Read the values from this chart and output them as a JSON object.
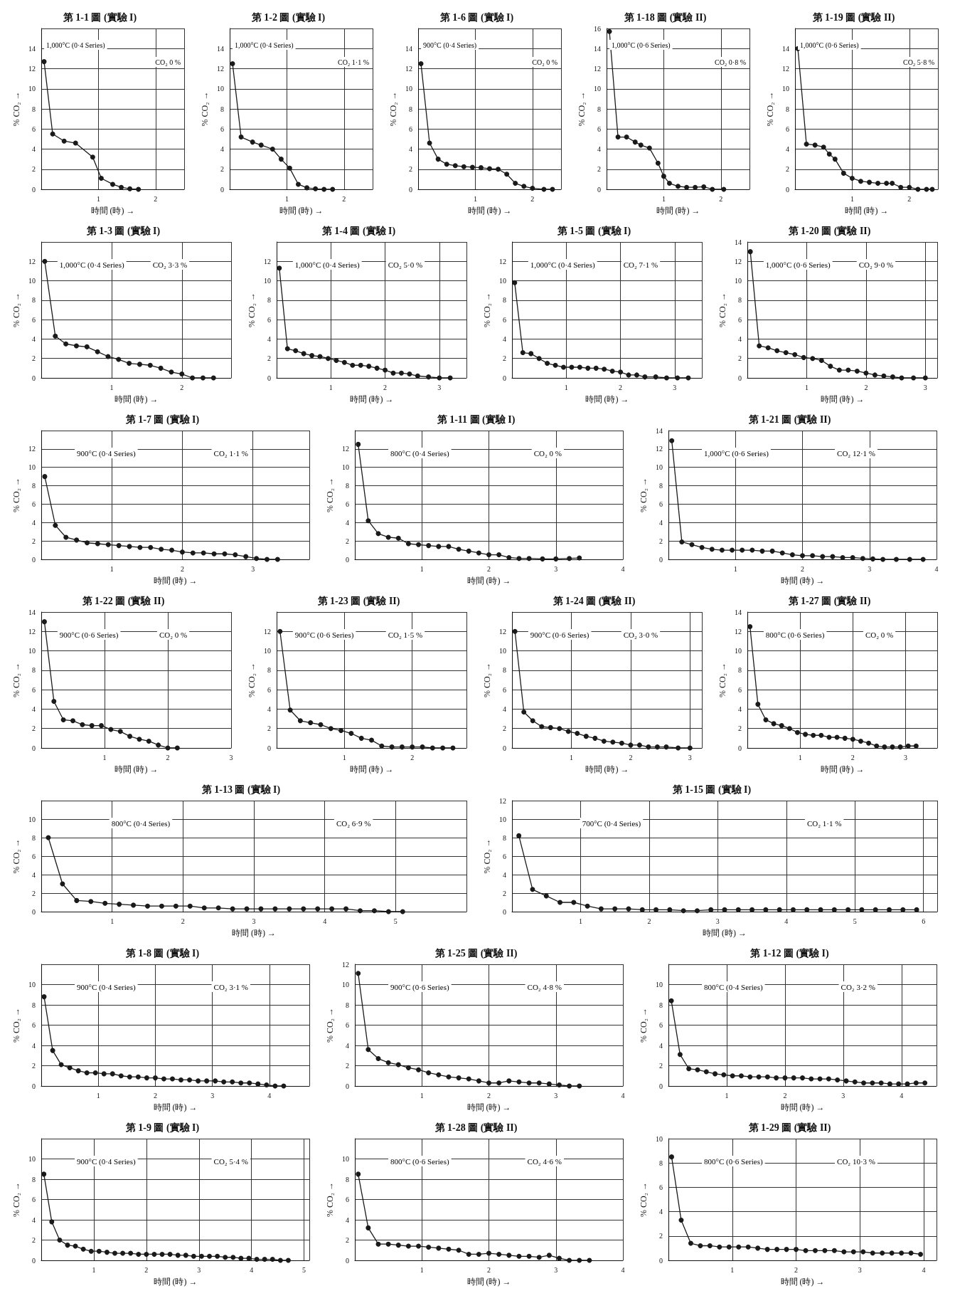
{
  "chart_data": [
    {
      "type": "line",
      "title": "第 1-1 圖 (實驗 I)",
      "xlabel": "時間 (時) →",
      "ylabel": "% CO₂ →",
      "annotations": [
        "1,000°C (0·4 Series)",
        "CO₂ 0 %"
      ],
      "color": "#1a1a1a",
      "marker": "circle",
      "grid": true,
      "xlim": [
        0,
        2.5
      ],
      "ylim": [
        0,
        16
      ],
      "xticks": [
        1,
        2
      ],
      "yticks": [
        0,
        2,
        4,
        6,
        8,
        10,
        12,
        14
      ],
      "x": [
        0.05,
        0.2,
        0.4,
        0.6,
        0.9,
        1.05,
        1.25,
        1.4,
        1.55,
        1.7
      ],
      "values": [
        12.7,
        5.5,
        4.8,
        4.6,
        3.2,
        1.1,
        0.5,
        0.2,
        0.05,
        0
      ]
    },
    {
      "type": "line",
      "title": "第 1-2 圖 (實驗 I)",
      "xlabel": "時間 (時) →",
      "ylabel": "% CO₂ →",
      "annotations": [
        "1,000°C (0·4 Series)",
        "CO₂ 1·1 %"
      ],
      "color": "#1a1a1a",
      "marker": "circle",
      "grid": true,
      "xlim": [
        0,
        2.5
      ],
      "ylim": [
        0,
        16
      ],
      "xticks": [
        1,
        2
      ],
      "yticks": [
        0,
        2,
        4,
        6,
        8,
        10,
        12,
        14
      ],
      "x": [
        0.05,
        0.2,
        0.4,
        0.55,
        0.75,
        0.9,
        1.05,
        1.2,
        1.35,
        1.5,
        1.65,
        1.8
      ],
      "values": [
        12.5,
        5.2,
        4.7,
        4.4,
        4.0,
        3.0,
        2.1,
        0.5,
        0.15,
        0.05,
        0,
        0
      ]
    },
    {
      "type": "line",
      "title": "第 1-6 圖 (實驗 I)",
      "xlabel": "時間 (時) →",
      "ylabel": "% CO₂ →",
      "annotations": [
        "900°C (0·4 Series)",
        "CO₂ 0 %"
      ],
      "color": "#1a1a1a",
      "marker": "circle",
      "grid": true,
      "xlim": [
        0,
        2.5
      ],
      "ylim": [
        0,
        16
      ],
      "xticks": [
        1,
        2
      ],
      "yticks": [
        0,
        2,
        4,
        6,
        8,
        10,
        12,
        14
      ],
      "x": [
        0.05,
        0.2,
        0.35,
        0.5,
        0.65,
        0.8,
        0.95,
        1.1,
        1.25,
        1.4,
        1.55,
        1.7,
        1.85,
        2.0,
        2.2,
        2.35
      ],
      "values": [
        12.5,
        4.6,
        3.0,
        2.5,
        2.35,
        2.25,
        2.2,
        2.15,
        2.05,
        2.0,
        1.5,
        0.6,
        0.3,
        0.1,
        0,
        0
      ]
    },
    {
      "type": "line",
      "title": "第 1-18 圖 (實驗 II)",
      "xlabel": "時間 (時) →",
      "ylabel": "% CO₂ →",
      "annotations": [
        "1,000°C (0·6 Series)",
        "CO₂ 0·8 %"
      ],
      "color": "#1a1a1a",
      "marker": "circle",
      "grid": true,
      "xlim": [
        0,
        2.5
      ],
      "ylim": [
        0,
        16
      ],
      "xticks": [
        1,
        2
      ],
      "yticks": [
        0,
        2,
        4,
        6,
        8,
        10,
        12,
        14,
        16
      ],
      "x": [
        0.05,
        0.2,
        0.35,
        0.5,
        0.6,
        0.75,
        0.9,
        1.0,
        1.1,
        1.25,
        1.4,
        1.55,
        1.7,
        1.85,
        2.05
      ],
      "values": [
        15.7,
        5.2,
        5.2,
        4.7,
        4.4,
        4.1,
        2.6,
        1.3,
        0.6,
        0.3,
        0.2,
        0.2,
        0.25,
        0,
        0
      ]
    },
    {
      "type": "line",
      "title": "第 1-19 圖 (實驗 II)",
      "xlabel": "時間 (時) →",
      "ylabel": "% CO₂ →",
      "annotations": [
        "1,000°C (0·6 Series)",
        "CO₂ 5·8 %"
      ],
      "color": "#1a1a1a",
      "marker": "circle",
      "grid": true,
      "xlim": [
        0,
        2.5
      ],
      "ylim": [
        0,
        16
      ],
      "xticks": [
        1,
        2
      ],
      "yticks": [
        0,
        2,
        4,
        6,
        8,
        10,
        12,
        14
      ],
      "x": [
        0.05,
        0.2,
        0.35,
        0.5,
        0.6,
        0.7,
        0.85,
        1.0,
        1.15,
        1.3,
        1.45,
        1.6,
        1.7,
        1.85,
        2.0,
        2.15,
        2.3,
        2.4
      ],
      "values": [
        14,
        4.5,
        4.4,
        4.2,
        3.5,
        3.0,
        1.6,
        1.1,
        0.8,
        0.7,
        0.6,
        0.6,
        0.6,
        0.2,
        0.2,
        0,
        0,
        0
      ]
    },
    {
      "type": "line",
      "title": "第 1-3 圖 (實驗 I)",
      "xlabel": "時間 (時) →",
      "ylabel": "% CO₂ →",
      "annotations": [
        "1,000°C (0·4 Series)",
        "CO₂ 3·3 %"
      ],
      "color": "#1a1a1a",
      "marker": "circle",
      "grid": true,
      "xlim": [
        0,
        2.7
      ],
      "ylim": [
        0,
        14
      ],
      "xticks": [
        1,
        2
      ],
      "yticks": [
        0,
        2,
        4,
        6,
        8,
        10,
        12
      ],
      "x": [
        0.05,
        0.2,
        0.35,
        0.5,
        0.65,
        0.8,
        0.95,
        1.1,
        1.25,
        1.4,
        1.55,
        1.7,
        1.85,
        2.0,
        2.15,
        2.3,
        2.45
      ],
      "values": [
        12,
        4.3,
        3.5,
        3.3,
        3.2,
        2.7,
        2.2,
        1.9,
        1.5,
        1.4,
        1.3,
        1.0,
        0.6,
        0.4,
        0,
        0,
        0
      ]
    },
    {
      "type": "line",
      "title": "第 1-4 圖 (實驗 I)",
      "xlabel": "時間 (時) →",
      "ylabel": "% CO₂ →",
      "annotations": [
        "1,000°C (0·4 Series)",
        "CO₂ 5·0 %"
      ],
      "color": "#1a1a1a",
      "marker": "circle",
      "grid": true,
      "xlim": [
        0,
        3.5
      ],
      "ylim": [
        0,
        14
      ],
      "xticks": [
        1,
        2,
        3
      ],
      "yticks": [
        0,
        2,
        4,
        6,
        8,
        10,
        12
      ],
      "x": [
        0.05,
        0.2,
        0.35,
        0.5,
        0.65,
        0.8,
        0.95,
        1.1,
        1.25,
        1.4,
        1.55,
        1.7,
        1.85,
        2.0,
        2.15,
        2.3,
        2.45,
        2.6,
        2.8,
        3.0,
        3.2
      ],
      "values": [
        11.3,
        3.0,
        2.8,
        2.5,
        2.3,
        2.2,
        2.0,
        1.8,
        1.6,
        1.3,
        1.3,
        1.2,
        1.0,
        0.8,
        0.5,
        0.5,
        0.4,
        0.2,
        0.1,
        0,
        0
      ]
    },
    {
      "type": "line",
      "title": "第 1-5 圖 (實驗 I)",
      "xlabel": "時間 (時) →",
      "ylabel": "% CO₂ →",
      "annotations": [
        "1,000°C (0·4 Series)",
        "CO₂ 7·1 %"
      ],
      "color": "#1a1a1a",
      "marker": "circle",
      "grid": true,
      "xlim": [
        0,
        3.5
      ],
      "ylim": [
        0,
        14
      ],
      "xticks": [
        1,
        2,
        3
      ],
      "yticks": [
        0,
        2,
        4,
        6,
        8,
        10,
        12
      ],
      "x": [
        0.05,
        0.2,
        0.35,
        0.5,
        0.65,
        0.8,
        0.95,
        1.1,
        1.25,
        1.4,
        1.55,
        1.7,
        1.85,
        2.0,
        2.15,
        2.3,
        2.45,
        2.65,
        2.85,
        3.05,
        3.25
      ],
      "values": [
        9.8,
        2.6,
        2.5,
        2.0,
        1.5,
        1.3,
        1.1,
        1.1,
        1.1,
        1.0,
        1.0,
        0.9,
        0.7,
        0.6,
        0.3,
        0.3,
        0.1,
        0.1,
        0,
        0,
        0
      ]
    },
    {
      "type": "line",
      "title": "第 1-20 圖 (實驗 II)",
      "xlabel": "時間 (時) →",
      "ylabel": "% CO₂ →",
      "annotations": [
        "1,000°C (0·6 Series)",
        "CO₂ 9·0 %"
      ],
      "color": "#1a1a1a",
      "marker": "circle",
      "grid": true,
      "xlim": [
        0,
        3.2
      ],
      "ylim": [
        0,
        14
      ],
      "xticks": [
        1,
        2,
        3
      ],
      "yticks": [
        0,
        2,
        4,
        6,
        8,
        10,
        12,
        14
      ],
      "x": [
        0.05,
        0.2,
        0.35,
        0.5,
        0.65,
        0.8,
        0.95,
        1.1,
        1.25,
        1.4,
        1.55,
        1.7,
        1.85,
        2.0,
        2.15,
        2.3,
        2.45,
        2.6,
        2.8,
        3.0
      ],
      "values": [
        13,
        3.3,
        3.1,
        2.8,
        2.6,
        2.4,
        2.1,
        2.0,
        1.8,
        1.2,
        0.8,
        0.8,
        0.7,
        0.5,
        0.3,
        0.2,
        0.1,
        0,
        0,
        0
      ]
    },
    {
      "type": "line",
      "title": "第 1-7 圖 (實驗 I)",
      "xlabel": "時間 (時) →",
      "ylabel": "% CO₂ →",
      "annotations": [
        "900°C (0·4 Series)",
        "CO₂ 1·1 %"
      ],
      "color": "#1a1a1a",
      "marker": "circle",
      "grid": true,
      "xlim": [
        0,
        3.8
      ],
      "ylim": [
        0,
        14
      ],
      "xticks": [
        1,
        2,
        3
      ],
      "yticks": [
        0,
        2,
        4,
        6,
        8,
        10,
        12
      ],
      "x": [
        0.05,
        0.2,
        0.35,
        0.5,
        0.65,
        0.8,
        0.95,
        1.1,
        1.25,
        1.4,
        1.55,
        1.7,
        1.85,
        2.0,
        2.15,
        2.3,
        2.45,
        2.6,
        2.75,
        2.9,
        3.05,
        3.2,
        3.35
      ],
      "values": [
        9,
        3.7,
        2.4,
        2.1,
        1.8,
        1.7,
        1.6,
        1.5,
        1.4,
        1.3,
        1.3,
        1.1,
        1.0,
        0.8,
        0.7,
        0.7,
        0.6,
        0.6,
        0.5,
        0.3,
        0.1,
        0,
        0
      ]
    },
    {
      "type": "line",
      "title": "第 1-11 圖 (實驗 I)",
      "xlabel": "時間 (時) →",
      "ylabel": "% CO₂ →",
      "annotations": [
        "800°C (0·4 Series)",
        "CO₂ 0 %"
      ],
      "color": "#1a1a1a",
      "marker": "circle",
      "grid": true,
      "xlim": [
        0,
        4
      ],
      "ylim": [
        0,
        14
      ],
      "xticks": [
        1,
        2,
        3,
        4
      ],
      "yticks": [
        0,
        2,
        4,
        6,
        8,
        10,
        12
      ],
      "x": [
        0.05,
        0.2,
        0.35,
        0.5,
        0.65,
        0.8,
        0.95,
        1.1,
        1.25,
        1.4,
        1.55,
        1.7,
        1.85,
        2.0,
        2.15,
        2.3,
        2.45,
        2.6,
        2.8,
        3.0,
        3.2,
        3.35
      ],
      "values": [
        12.5,
        4.2,
        2.8,
        2.4,
        2.3,
        1.7,
        1.6,
        1.5,
        1.4,
        1.4,
        1.1,
        0.9,
        0.7,
        0.5,
        0.5,
        0.2,
        0.1,
        0.1,
        0.05,
        0.05,
        0.1,
        0.15
      ]
    },
    {
      "type": "line",
      "title": "第 1-21 圖 (實驗 II)",
      "xlabel": "時間 (時) →",
      "ylabel": "% CO₂ →",
      "annotations": [
        "1,000°C (0·6 Series)",
        "CO₂ 12·1 %"
      ],
      "color": "#1a1a1a",
      "marker": "circle",
      "grid": true,
      "xlim": [
        0,
        4
      ],
      "ylim": [
        0,
        14
      ],
      "xticks": [
        1,
        2,
        3,
        4
      ],
      "yticks": [
        0,
        2,
        4,
        6,
        8,
        10,
        12,
        14
      ],
      "x": [
        0.05,
        0.2,
        0.35,
        0.5,
        0.65,
        0.8,
        0.95,
        1.1,
        1.25,
        1.4,
        1.55,
        1.7,
        1.85,
        2.0,
        2.15,
        2.3,
        2.45,
        2.6,
        2.75,
        2.9,
        3.05,
        3.2,
        3.4,
        3.6,
        3.8
      ],
      "values": [
        12.9,
        1.9,
        1.6,
        1.3,
        1.1,
        1.0,
        1.0,
        1.0,
        1.0,
        0.9,
        0.9,
        0.7,
        0.5,
        0.4,
        0.4,
        0.3,
        0.3,
        0.2,
        0.2,
        0.1,
        0.05,
        0,
        0,
        0,
        0
      ]
    },
    {
      "type": "line",
      "title": "第 1-22 圖 (實驗 II)",
      "xlabel": "時間 (時) →",
      "ylabel": "% CO₂ →",
      "annotations": [
        "900°C (0·6 Series)",
        "CO₂ 0 %"
      ],
      "color": "#1a1a1a",
      "marker": "circle",
      "grid": true,
      "xlim": [
        0,
        3
      ],
      "ylim": [
        0,
        14
      ],
      "xticks": [
        1,
        2,
        3
      ],
      "yticks": [
        0,
        2,
        4,
        6,
        8,
        10,
        12,
        14
      ],
      "x": [
        0.05,
        0.2,
        0.35,
        0.5,
        0.65,
        0.8,
        0.95,
        1.1,
        1.25,
        1.4,
        1.55,
        1.7,
        1.85,
        2.0,
        2.15
      ],
      "values": [
        13,
        4.8,
        2.9,
        2.8,
        2.4,
        2.3,
        2.3,
        1.9,
        1.7,
        1.2,
        0.9,
        0.7,
        0.3,
        0,
        0
      ]
    },
    {
      "type": "line",
      "title": "第 1-23 圖 (實驗 II)",
      "xlabel": "時間 (時) →",
      "ylabel": "% CO₂ →",
      "annotations": [
        "900°C (0·6 Series)",
        "CO₂ 1·5 %"
      ],
      "color": "#1a1a1a",
      "marker": "circle",
      "grid": true,
      "xlim": [
        0,
        2.8
      ],
      "ylim": [
        0,
        14
      ],
      "xticks": [
        1,
        2
      ],
      "yticks": [
        0,
        2,
        4,
        6,
        8,
        10,
        12
      ],
      "x": [
        0.05,
        0.2,
        0.35,
        0.5,
        0.65,
        0.8,
        0.95,
        1.1,
        1.25,
        1.4,
        1.55,
        1.7,
        1.85,
        2.0,
        2.15,
        2.3,
        2.45,
        2.6
      ],
      "values": [
        12,
        3.9,
        2.8,
        2.6,
        2.4,
        2.0,
        1.8,
        1.5,
        1.0,
        0.8,
        0.2,
        0.1,
        0.1,
        0.1,
        0.1,
        0,
        0,
        0
      ]
    },
    {
      "type": "line",
      "title": "第 1-24 圖 (實驗 II)",
      "xlabel": "時間 (時) →",
      "ylabel": "% CO₂ →",
      "annotations": [
        "900°C (0·6 Series)",
        "CO₂ 3·0 %"
      ],
      "color": "#1a1a1a",
      "marker": "circle",
      "grid": true,
      "xlim": [
        0,
        3.2
      ],
      "ylim": [
        0,
        14
      ],
      "xticks": [
        1,
        2,
        3
      ],
      "yticks": [
        0,
        2,
        4,
        6,
        8,
        10,
        12
      ],
      "x": [
        0.05,
        0.2,
        0.35,
        0.5,
        0.65,
        0.8,
        0.95,
        1.1,
        1.25,
        1.4,
        1.55,
        1.7,
        1.85,
        2.0,
        2.15,
        2.3,
        2.45,
        2.6,
        2.8,
        3.0
      ],
      "values": [
        12,
        3.7,
        2.8,
        2.2,
        2.1,
        2.0,
        1.7,
        1.5,
        1.2,
        1.0,
        0.7,
        0.6,
        0.5,
        0.3,
        0.3,
        0.1,
        0.1,
        0.1,
        0,
        0
      ]
    },
    {
      "type": "line",
      "title": "第 1-27 圖 (實驗 II)",
      "xlabel": "時間 (時) →",
      "ylabel": "% CO₂ →",
      "annotations": [
        "800°C (0·6 Series)",
        "CO₂ 0 %"
      ],
      "color": "#1a1a1a",
      "marker": "circle",
      "grid": true,
      "xlim": [
        0,
        3.6
      ],
      "ylim": [
        0,
        14
      ],
      "xticks": [
        1,
        2,
        3
      ],
      "yticks": [
        0,
        2,
        4,
        6,
        8,
        10,
        12,
        14
      ],
      "x": [
        0.05,
        0.2,
        0.35,
        0.5,
        0.65,
        0.8,
        0.95,
        1.1,
        1.25,
        1.4,
        1.55,
        1.7,
        1.85,
        2.0,
        2.15,
        2.3,
        2.45,
        2.6,
        2.75,
        2.9,
        3.05,
        3.2
      ],
      "values": [
        12.5,
        4.5,
        2.9,
        2.5,
        2.3,
        2.0,
        1.6,
        1.4,
        1.3,
        1.3,
        1.1,
        1.1,
        1.0,
        0.9,
        0.7,
        0.5,
        0.2,
        0.1,
        0.1,
        0.1,
        0.2,
        0.2
      ]
    },
    {
      "type": "line",
      "title": "第 1-13 圖 (實驗 I)",
      "xlabel": "時間 (時) →",
      "ylabel": "% CO₂ →",
      "annotations": [
        "800°C (0·4 Series)",
        "CO₂ 6·9 %"
      ],
      "color": "#1a1a1a",
      "marker": "circle",
      "grid": true,
      "xlim": [
        0,
        6
      ],
      "ylim": [
        0,
        12
      ],
      "xticks": [
        1,
        2,
        3,
        4,
        5
      ],
      "yticks": [
        0,
        2,
        4,
        6,
        8,
        10
      ],
      "x": [
        0.1,
        0.3,
        0.5,
        0.7,
        0.9,
        1.1,
        1.3,
        1.5,
        1.7,
        1.9,
        2.1,
        2.3,
        2.5,
        2.7,
        2.9,
        3.1,
        3.3,
        3.5,
        3.7,
        3.9,
        4.1,
        4.3,
        4.5,
        4.7,
        4.9,
        5.1
      ],
      "values": [
        8,
        3,
        1.2,
        1.1,
        0.9,
        0.8,
        0.7,
        0.6,
        0.6,
        0.6,
        0.6,
        0.4,
        0.4,
        0.3,
        0.3,
        0.3,
        0.3,
        0.3,
        0.3,
        0.3,
        0.3,
        0.3,
        0.1,
        0.1,
        0,
        0
      ]
    },
    {
      "type": "line",
      "title": "第 1-15 圖 (實驗 I)",
      "xlabel": "時間 (時) →",
      "ylabel": "% CO₂ →",
      "annotations": [
        "700°C (0·4 Series)",
        "CO₂ 1·1 %"
      ],
      "color": "#1a1a1a",
      "marker": "circle",
      "grid": true,
      "xlim": [
        0,
        6.2
      ],
      "ylim": [
        0,
        12
      ],
      "xticks": [
        1,
        2,
        3,
        4,
        5,
        6
      ],
      "yticks": [
        0,
        2,
        4,
        6,
        8,
        10,
        12
      ],
      "x": [
        0.1,
        0.3,
        0.5,
        0.7,
        0.9,
        1.1,
        1.3,
        1.5,
        1.7,
        1.9,
        2.1,
        2.3,
        2.5,
        2.7,
        2.9,
        3.1,
        3.3,
        3.5,
        3.7,
        3.9,
        4.1,
        4.3,
        4.5,
        4.7,
        4.9,
        5.1,
        5.3,
        5.5,
        5.7,
        5.9
      ],
      "values": [
        8.2,
        2.4,
        1.7,
        1.0,
        1.0,
        0.6,
        0.3,
        0.3,
        0.3,
        0.2,
        0.2,
        0.2,
        0.1,
        0.1,
        0.2,
        0.2,
        0.2,
        0.2,
        0.2,
        0.2,
        0.2,
        0.2,
        0.2,
        0.2,
        0.2,
        0.2,
        0.2,
        0.2,
        0.2,
        0.2
      ]
    },
    {
      "type": "line",
      "title": "第 1-8 圖 (實驗 I)",
      "xlabel": "時間 (時) →",
      "ylabel": "% CO₂ →",
      "annotations": [
        "900°C (0·4 Series)",
        "CO₂ 3·1 %"
      ],
      "color": "#1a1a1a",
      "marker": "circle",
      "grid": true,
      "xlim": [
        0,
        4.7
      ],
      "ylim": [
        0,
        12
      ],
      "xticks": [
        1,
        2,
        3,
        4
      ],
      "yticks": [
        0,
        2,
        4,
        6,
        8,
        10
      ],
      "x": [
        0.05,
        0.2,
        0.35,
        0.5,
        0.65,
        0.8,
        0.95,
        1.1,
        1.25,
        1.4,
        1.55,
        1.7,
        1.85,
        2.0,
        2.15,
        2.3,
        2.45,
        2.6,
        2.75,
        2.9,
        3.05,
        3.2,
        3.35,
        3.5,
        3.65,
        3.8,
        3.95,
        4.1,
        4.25
      ],
      "values": [
        8.8,
        3.5,
        2.1,
        1.8,
        1.5,
        1.3,
        1.3,
        1.2,
        1.2,
        1.0,
        0.9,
        0.9,
        0.8,
        0.8,
        0.7,
        0.7,
        0.6,
        0.6,
        0.5,
        0.5,
        0.5,
        0.4,
        0.4,
        0.3,
        0.3,
        0.2,
        0.1,
        0,
        0
      ]
    },
    {
      "type": "line",
      "title": "第 1-25 圖 (實驗 II)",
      "xlabel": "時間 (時) →",
      "ylabel": "% CO₂ →",
      "annotations": [
        "900°C (0·6 Series)",
        "CO₂ 4·8 %"
      ],
      "color": "#1a1a1a",
      "marker": "circle",
      "grid": true,
      "xlim": [
        0,
        4
      ],
      "ylim": [
        0,
        12
      ],
      "xticks": [
        1,
        2,
        3,
        4
      ],
      "yticks": [
        0,
        2,
        4,
        6,
        8,
        10,
        12
      ],
      "x": [
        0.05,
        0.2,
        0.35,
        0.5,
        0.65,
        0.8,
        0.95,
        1.1,
        1.25,
        1.4,
        1.55,
        1.7,
        1.85,
        2.0,
        2.15,
        2.3,
        2.45,
        2.6,
        2.75,
        2.9,
        3.05,
        3.2,
        3.35
      ],
      "values": [
        11.1,
        3.6,
        2.7,
        2.3,
        2.1,
        1.8,
        1.6,
        1.3,
        1.1,
        0.9,
        0.8,
        0.7,
        0.5,
        0.3,
        0.3,
        0.5,
        0.4,
        0.3,
        0.3,
        0.2,
        0.1,
        0,
        0
      ]
    },
    {
      "type": "line",
      "title": "第 1-12 圖 (實驗 I)",
      "xlabel": "時間 (時) →",
      "ylabel": "% CO₂ →",
      "annotations": [
        "800°C (0·4 Series)",
        "CO₂ 3·2 %"
      ],
      "color": "#1a1a1a",
      "marker": "circle",
      "grid": true,
      "xlim": [
        0,
        4.6
      ],
      "ylim": [
        0,
        12
      ],
      "xticks": [
        1,
        2,
        3,
        4
      ],
      "yticks": [
        0,
        2,
        4,
        6,
        8,
        10
      ],
      "x": [
        0.05,
        0.2,
        0.35,
        0.5,
        0.65,
        0.8,
        0.95,
        1.1,
        1.25,
        1.4,
        1.55,
        1.7,
        1.85,
        2.0,
        2.15,
        2.3,
        2.45,
        2.6,
        2.75,
        2.9,
        3.05,
        3.2,
        3.35,
        3.5,
        3.65,
        3.8,
        3.95,
        4.1,
        4.25,
        4.4
      ],
      "values": [
        8.4,
        3.1,
        1.7,
        1.6,
        1.4,
        1.2,
        1.1,
        1.0,
        1.0,
        0.9,
        0.9,
        0.9,
        0.8,
        0.8,
        0.8,
        0.8,
        0.7,
        0.7,
        0.7,
        0.6,
        0.5,
        0.4,
        0.3,
        0.3,
        0.3,
        0.2,
        0.2,
        0.2,
        0.3,
        0.3
      ]
    },
    {
      "type": "line",
      "title": "第 1-9 圖 (實驗 I)",
      "xlabel": "時間 (時) →",
      "ylabel": "% CO₂ →",
      "annotations": [
        "900°C (0·4 Series)",
        "CO₂ 5·4 %"
      ],
      "color": "#1a1a1a",
      "marker": "circle",
      "grid": true,
      "xlim": [
        0,
        5.1
      ],
      "ylim": [
        0,
        12
      ],
      "xticks": [
        1,
        2,
        3,
        4,
        5
      ],
      "yticks": [
        0,
        2,
        4,
        6,
        8,
        10
      ],
      "x": [
        0.05,
        0.2,
        0.35,
        0.5,
        0.65,
        0.8,
        0.95,
        1.1,
        1.25,
        1.4,
        1.55,
        1.7,
        1.85,
        2.0,
        2.15,
        2.3,
        2.45,
        2.6,
        2.75,
        2.9,
        3.05,
        3.2,
        3.35,
        3.5,
        3.65,
        3.8,
        3.95,
        4.1,
        4.25,
        4.4,
        4.55,
        4.7
      ],
      "values": [
        8.5,
        3.8,
        2.0,
        1.5,
        1.4,
        1.1,
        0.9,
        0.9,
        0.8,
        0.7,
        0.7,
        0.7,
        0.6,
        0.6,
        0.6,
        0.6,
        0.6,
        0.5,
        0.5,
        0.4,
        0.4,
        0.4,
        0.4,
        0.3,
        0.3,
        0.2,
        0.2,
        0.1,
        0.1,
        0.1,
        0,
        0
      ]
    },
    {
      "type": "line",
      "title": "第 1-28 圖 (實驗 II)",
      "xlabel": "時間 (時) →",
      "ylabel": "% CO₂ →",
      "annotations": [
        "800°C (0·6 Series)",
        "CO₂ 4·6 %"
      ],
      "color": "#1a1a1a",
      "marker": "circle",
      "grid": true,
      "xlim": [
        0,
        4
      ],
      "ylim": [
        0,
        12
      ],
      "xticks": [
        1,
        2,
        3,
        4
      ],
      "yticks": [
        0,
        2,
        4,
        6,
        8,
        10
      ],
      "x": [
        0.05,
        0.2,
        0.35,
        0.5,
        0.65,
        0.8,
        0.95,
        1.1,
        1.25,
        1.4,
        1.55,
        1.7,
        1.85,
        2.0,
        2.15,
        2.3,
        2.45,
        2.6,
        2.75,
        2.9,
        3.05,
        3.2,
        3.35,
        3.5
      ],
      "values": [
        8.5,
        3.2,
        1.6,
        1.6,
        1.5,
        1.4,
        1.4,
        1.3,
        1.2,
        1.1,
        1.0,
        0.6,
        0.6,
        0.7,
        0.6,
        0.5,
        0.4,
        0.4,
        0.3,
        0.5,
        0.2,
        0,
        0,
        0
      ]
    },
    {
      "type": "line",
      "title": "第 1-29 圖 (實驗 II)",
      "xlabel": "時間 (時) →",
      "ylabel": "% CO₂ →",
      "annotations": [
        "800°C (0·6 Series)",
        "CO₂ 10·3 %"
      ],
      "color": "#1a1a1a",
      "marker": "circle",
      "grid": true,
      "xlim": [
        0,
        4.2
      ],
      "ylim": [
        0,
        10
      ],
      "xticks": [
        1,
        2,
        3,
        4
      ],
      "yticks": [
        0,
        2,
        4,
        6,
        8,
        10
      ],
      "x": [
        0.05,
        0.2,
        0.35,
        0.5,
        0.65,
        0.8,
        0.95,
        1.1,
        1.25,
        1.4,
        1.55,
        1.7,
        1.85,
        2.0,
        2.15,
        2.3,
        2.45,
        2.6,
        2.75,
        2.9,
        3.05,
        3.2,
        3.35,
        3.5,
        3.65,
        3.8,
        3.95
      ],
      "values": [
        8.5,
        3.3,
        1.4,
        1.2,
        1.2,
        1.1,
        1.1,
        1.1,
        1.1,
        1.0,
        0.9,
        0.9,
        0.9,
        0.9,
        0.8,
        0.8,
        0.8,
        0.8,
        0.7,
        0.7,
        0.7,
        0.6,
        0.6,
        0.6,
        0.6,
        0.6,
        0.5
      ]
    }
  ]
}
